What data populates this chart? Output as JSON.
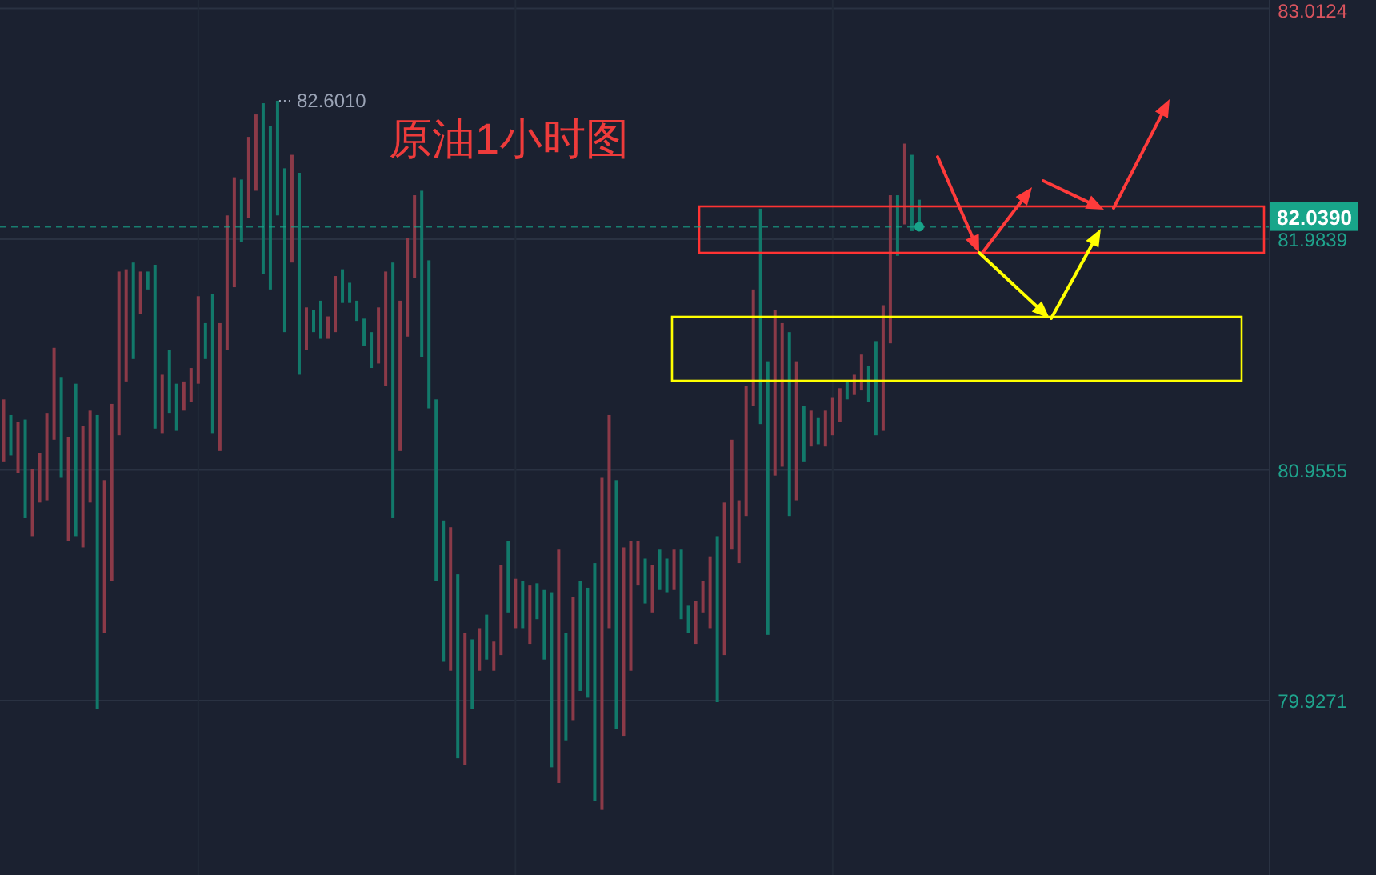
{
  "chart_data": {
    "type": "candlestick",
    "title": "原油1小时图",
    "categories": [
      null,
      null,
      null,
      null,
      null,
      null,
      null,
      null,
      null,
      null,
      null,
      null,
      null,
      null,
      null,
      null,
      null,
      null,
      null,
      null,
      null,
      null,
      null,
      null,
      null,
      null,
      null,
      null,
      null,
      null,
      null,
      null,
      null,
      null,
      null,
      null,
      null,
      null,
      null,
      null,
      null,
      null,
      null,
      null,
      null,
      null,
      null,
      null,
      null,
      null,
      null,
      null,
      null,
      null,
      null,
      null,
      null,
      null,
      null,
      null,
      null,
      null,
      null,
      null,
      null,
      null,
      null,
      null,
      null,
      null,
      null,
      null,
      null,
      null,
      null,
      null,
      null,
      null,
      null,
      null,
      null,
      null,
      null,
      null,
      null,
      null,
      null,
      null,
      null,
      null,
      null,
      null,
      null,
      null,
      null,
      null,
      null,
      null,
      null,
      null,
      null,
      null,
      null,
      null,
      null,
      null,
      null,
      null,
      null,
      null,
      null,
      null,
      null,
      null,
      null,
      null,
      null,
      null,
      null,
      null,
      null,
      null,
      null,
      null,
      null,
      null,
      null,
      null,
      null,
      null,
      null,
      null,
      null,
      null,
      null,
      null,
      null,
      null,
      null,
      null,
      null,
      null,
      null,
      null,
      null,
      null,
      null,
      null,
      null,
      null,
      null,
      null,
      null,
      null,
      null,
      null,
      null,
      null,
      null,
      null,
      null,
      null,
      null,
      null,
      null,
      null,
      null,
      null,
      null,
      null,
      null,
      null,
      null,
      null,
      null,
      null
    ],
    "ohlc": [
      [
        80.99,
        81.27,
        80.99,
        81.27
      ],
      [
        81.2,
        81.2,
        81.02,
        81.02
      ],
      [
        80.94,
        81.17,
        80.94,
        81.17
      ],
      [
        81.18,
        81.18,
        80.74,
        80.74
      ],
      [
        80.66,
        80.96,
        80.66,
        80.96
      ],
      [
        80.81,
        81.03,
        80.81,
        81.03
      ],
      [
        80.82,
        81.21,
        80.82,
        81.21
      ],
      [
        81.09,
        81.5,
        81.09,
        81.5
      ],
      [
        81.37,
        81.37,
        80.92,
        80.92
      ],
      [
        80.64,
        81.1,
        80.64,
        81.1
      ],
      [
        81.34,
        81.34,
        80.66,
        80.66
      ],
      [
        80.61,
        81.15,
        80.61,
        81.15
      ],
      [
        80.81,
        81.22,
        80.81,
        81.22
      ],
      [
        81.2,
        81.2,
        79.89,
        79.89
      ],
      [
        80.23,
        80.91,
        80.23,
        80.91
      ],
      [
        80.46,
        81.25,
        80.46,
        81.25
      ],
      [
        81.11,
        81.84,
        81.11,
        81.84
      ],
      [
        81.35,
        81.85,
        81.35,
        81.85
      ],
      [
        81.88,
        81.88,
        81.45,
        81.45
      ],
      [
        81.65,
        81.84,
        81.65,
        81.84
      ],
      [
        81.84,
        81.84,
        81.76,
        81.76
      ],
      [
        81.87,
        81.87,
        81.14,
        81.14
      ],
      [
        81.12,
        81.38,
        81.12,
        81.38
      ],
      [
        81.49,
        81.49,
        81.21,
        81.21
      ],
      [
        81.34,
        81.34,
        81.13,
        81.13
      ],
      [
        81.22,
        81.35,
        81.22,
        81.35
      ],
      [
        81.26,
        81.41,
        81.26,
        81.41
      ],
      [
        81.34,
        81.73,
        81.34,
        81.73
      ],
      [
        81.61,
        81.61,
        81.45,
        81.45
      ],
      [
        81.74,
        81.74,
        81.12,
        81.12
      ],
      [
        81.04,
        81.61,
        81.04,
        81.61
      ],
      [
        81.49,
        82.09,
        81.49,
        82.09
      ],
      [
        81.77,
        82.26,
        81.77,
        82.26
      ],
      [
        82.25,
        82.25,
        81.97,
        81.97
      ],
      [
        82.08,
        82.44,
        82.08,
        82.44
      ],
      [
        82.2,
        82.54,
        82.2,
        82.54
      ],
      [
        82.59,
        82.59,
        81.83,
        81.83
      ],
      [
        82.49,
        82.49,
        81.76,
        81.76
      ],
      [
        82.601,
        82.601,
        82.09,
        82.09
      ],
      [
        82.3,
        82.3,
        81.57,
        81.57
      ],
      [
        81.88,
        82.36,
        81.88,
        82.36
      ],
      [
        82.28,
        82.28,
        81.38,
        81.38
      ],
      [
        81.49,
        81.68,
        81.49,
        81.68
      ],
      [
        81.67,
        81.67,
        81.57,
        81.57
      ],
      [
        81.71,
        81.71,
        81.54,
        81.54
      ],
      [
        81.54,
        81.64,
        81.54,
        81.64
      ],
      [
        81.57,
        81.82,
        81.57,
        81.82
      ],
      [
        81.85,
        81.85,
        81.7,
        81.7
      ],
      [
        81.79,
        81.79,
        81.7,
        81.7
      ],
      [
        81.71,
        81.71,
        81.62,
        81.62
      ],
      [
        81.63,
        81.63,
        81.51,
        81.51
      ],
      [
        81.57,
        81.57,
        81.41,
        81.41
      ],
      [
        81.43,
        81.68,
        81.43,
        81.68
      ],
      [
        81.33,
        81.84,
        81.33,
        81.84
      ],
      [
        81.88,
        81.88,
        80.74,
        80.74
      ],
      [
        81.04,
        81.71,
        81.04,
        81.71
      ],
      [
        81.55,
        81.99,
        81.55,
        81.99
      ],
      [
        81.81,
        82.18,
        81.81,
        82.18
      ],
      [
        82.2,
        82.2,
        81.46,
        81.46
      ],
      [
        81.89,
        81.89,
        81.23,
        81.23
      ],
      [
        81.27,
        81.27,
        80.46,
        80.46
      ],
      [
        80.73,
        80.73,
        80.1,
        80.1
      ],
      [
        80.06,
        80.7,
        80.06,
        80.7
      ],
      [
        80.49,
        80.49,
        79.67,
        79.67
      ],
      [
        79.64,
        80.23,
        79.64,
        80.23
      ],
      [
        80.2,
        80.2,
        79.89,
        79.89
      ],
      [
        80.06,
        80.25,
        80.06,
        80.25
      ],
      [
        80.31,
        80.31,
        80.11,
        80.11
      ],
      [
        80.06,
        80.19,
        80.06,
        80.19
      ],
      [
        80.13,
        80.53,
        80.13,
        80.53
      ],
      [
        80.64,
        80.64,
        80.32,
        80.32
      ],
      [
        80.25,
        80.47,
        80.25,
        80.47
      ],
      [
        80.46,
        80.46,
        80.25,
        80.25
      ],
      [
        80.18,
        80.44,
        80.18,
        80.44
      ],
      [
        80.45,
        80.45,
        80.29,
        80.29
      ],
      [
        80.42,
        80.42,
        80.11,
        80.11
      ],
      [
        80.41,
        80.41,
        79.63,
        79.63
      ],
      [
        79.56,
        80.6,
        79.56,
        80.6
      ],
      [
        80.23,
        80.23,
        79.75,
        79.75
      ],
      [
        79.84,
        80.39,
        79.84,
        80.39
      ],
      [
        80.46,
        80.46,
        79.97,
        79.97
      ],
      [
        80.43,
        80.43,
        79.94,
        79.94
      ],
      [
        80.54,
        80.54,
        79.48,
        79.48
      ],
      [
        79.44,
        80.92,
        79.44,
        80.92
      ],
      [
        80.25,
        81.2,
        80.25,
        81.2
      ],
      [
        80.91,
        80.91,
        79.8,
        79.8
      ],
      [
        79.77,
        80.61,
        79.77,
        80.61
      ],
      [
        80.06,
        80.64,
        80.06,
        80.64
      ],
      [
        80.44,
        80.64,
        80.44,
        80.64
      ],
      [
        80.56,
        80.56,
        80.36,
        80.36
      ],
      [
        80.32,
        80.53,
        80.32,
        80.53
      ],
      [
        80.6,
        80.6,
        80.42,
        80.42
      ],
      [
        80.56,
        80.56,
        80.41,
        80.41
      ],
      [
        80.42,
        80.6,
        80.42,
        80.6
      ],
      [
        80.6,
        80.6,
        80.29,
        80.29
      ],
      [
        80.35,
        80.35,
        80.23,
        80.23
      ],
      [
        80.18,
        80.37,
        80.18,
        80.37
      ],
      [
        80.32,
        80.46,
        80.32,
        80.46
      ],
      [
        80.25,
        80.57,
        80.25,
        80.57
      ],
      [
        80.66,
        80.66,
        79.92,
        79.92
      ],
      [
        80.13,
        80.81,
        80.13,
        80.81
      ],
      [
        80.6,
        81.09,
        80.6,
        81.09
      ],
      [
        80.54,
        80.82,
        80.54,
        80.82
      ],
      [
        80.75,
        81.33,
        80.75,
        81.33
      ],
      [
        81.24,
        81.76,
        81.24,
        81.76
      ],
      [
        82.12,
        82.12,
        81.16,
        81.16
      ],
      [
        81.44,
        81.44,
        80.22,
        80.22
      ],
      [
        80.93,
        81.67,
        80.93,
        81.67
      ],
      [
        80.97,
        81.61,
        80.97,
        81.61
      ],
      [
        81.57,
        81.57,
        80.75,
        80.75
      ],
      [
        80.82,
        81.44,
        80.82,
        81.44
      ],
      [
        81.24,
        81.24,
        80.99,
        80.99
      ],
      [
        81.06,
        81.22,
        81.06,
        81.22
      ],
      [
        81.19,
        81.19,
        81.07,
        81.07
      ],
      [
        81.06,
        81.22,
        81.06,
        81.22
      ],
      [
        81.11,
        81.28,
        81.11,
        81.28
      ],
      [
        81.17,
        81.32,
        81.17,
        81.32
      ],
      [
        81.35,
        81.35,
        81.27,
        81.27
      ],
      [
        81.29,
        81.38,
        81.29,
        81.38
      ],
      [
        81.31,
        81.47,
        81.31,
        81.47
      ],
      [
        81.42,
        81.42,
        81.26,
        81.26
      ],
      [
        81.53,
        81.53,
        81.11,
        81.11
      ],
      [
        81.13,
        81.69,
        81.13,
        81.69
      ],
      [
        81.52,
        82.18,
        81.52,
        82.18
      ],
      [
        82.18,
        82.18,
        81.91,
        81.91
      ],
      [
        82.05,
        82.41,
        82.05,
        82.41
      ],
      [
        82.36,
        82.36,
        82.02,
        82.02
      ],
      [
        82.16,
        82.16,
        82.039,
        82.039
      ],
      null,
      null,
      null,
      null,
      null,
      null,
      null,
      null,
      null,
      null,
      null,
      null,
      null,
      null,
      null,
      null,
      null,
      null,
      null,
      null,
      null,
      null,
      null,
      null,
      null,
      null,
      null,
      null,
      null,
      null,
      null,
      null,
      null,
      null,
      null,
      null,
      null,
      null,
      null,
      null,
      null,
      null,
      null,
      null,
      null,
      null,
      null,
      null
    ],
    "ylim": [
      79.15,
      83.05
    ],
    "yticks": [
      83.0124,
      81.9839,
      80.9555,
      79.9271
    ],
    "grid": true,
    "ref_lines": [
      {
        "axis": "y",
        "value": 82.039,
        "label": "82.0390",
        "color": "#18a58a",
        "line_style": "dashed"
      }
    ],
    "annotations": [
      "82.6010"
    ]
  }
}
